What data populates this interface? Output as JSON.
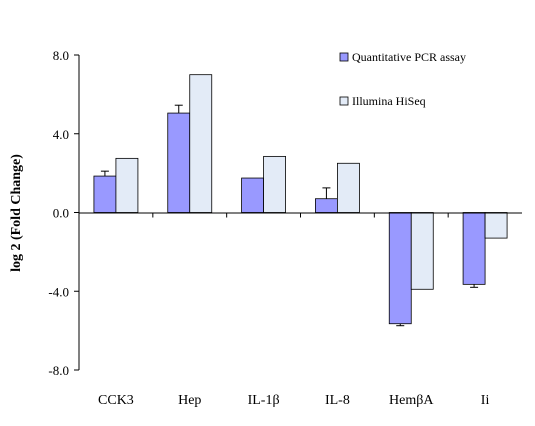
{
  "chart_data": {
    "type": "bar",
    "title": "",
    "xlabel": "",
    "ylabel": "log 2 (Fold Change)",
    "ylim": [
      -8.0,
      8.0
    ],
    "yticks": [
      "8.0",
      "4.0",
      "0.0",
      "-4.0",
      "-8.0"
    ],
    "ytick_values": [
      8,
      4,
      0,
      -4,
      -8
    ],
    "grid": false,
    "legend_position": "top-right",
    "categories": [
      "CCK3",
      "Hep",
      "IL-1β",
      "IL-8",
      "HemβA",
      "Ii"
    ],
    "series": [
      {
        "name": "Quantitative PCR assay",
        "color": "#9999ff",
        "values": [
          1.85,
          5.05,
          1.75,
          0.7,
          -5.65,
          -3.65
        ],
        "error": [
          0.25,
          0.4,
          0.0,
          0.55,
          0.1,
          0.15
        ]
      },
      {
        "name": "Illumina HiSeq",
        "color": "#e3ebf7",
        "values": [
          2.75,
          7.0,
          2.85,
          2.5,
          -3.9,
          -1.3
        ]
      }
    ]
  }
}
